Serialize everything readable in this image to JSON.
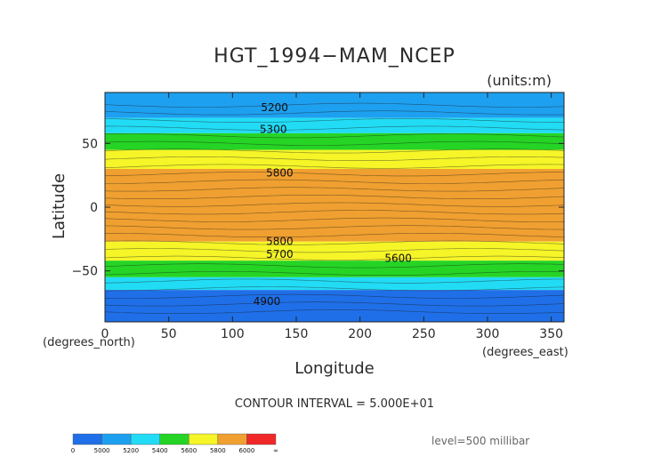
{
  "chart_data": {
    "type": "heatmap",
    "title": "HGT_1994−MAM_NCEP",
    "units": "(units:m)",
    "xlabel": "Longitude",
    "ylabel": "Latitude",
    "x_unit": "(degrees_east)",
    "y_unit": "(degrees_north)",
    "xlim": [
      0,
      360
    ],
    "ylim": [
      -90,
      90
    ],
    "x_ticks": [
      "0",
      "50",
      "100",
      "150",
      "200",
      "250",
      "300",
      "350"
    ],
    "y_ticks": [
      "50",
      "0",
      "−50"
    ],
    "contour_interval_text": "CONTOUR INTERVAL = 5.000E+01",
    "level_text": "level=500 millibar",
    "colorbar": {
      "ticks": [
        "0",
        "5000",
        "5200",
        "5400",
        "5600",
        "5800",
        "6000",
        "∞"
      ],
      "colors": [
        "#1f6fe8",
        "#1ea0f0",
        "#22dcf5",
        "#25d425",
        "#f5f528",
        "#f0a030",
        "#f02828"
      ]
    },
    "bands": [
      {
        "lat_top": 90,
        "lat_bottom": 70,
        "color": "#1ea0f0"
      },
      {
        "lat_top": 70,
        "lat_bottom": 58,
        "color": "#22dcf5"
      },
      {
        "lat_top": 58,
        "lat_bottom": 45,
        "color": "#25d425"
      },
      {
        "lat_top": 45,
        "lat_bottom": 30,
        "color": "#f5f528"
      },
      {
        "lat_top": 30,
        "lat_bottom": -27,
        "color": "#f0a030"
      },
      {
        "lat_top": -27,
        "lat_bottom": -42,
        "color": "#f5f528"
      },
      {
        "lat_top": -42,
        "lat_bottom": -55,
        "color": "#25d425"
      },
      {
        "lat_top": -55,
        "lat_bottom": -65,
        "color": "#22dcf5"
      },
      {
        "lat_top": -65,
        "lat_bottom": -90,
        "color": "#1f6fe8"
      }
    ],
    "contour_labels": [
      {
        "text": "5200",
        "lon": 133,
        "lat": 78
      },
      {
        "text": "5300",
        "lon": 132,
        "lat": 61
      },
      {
        "text": "5800",
        "lon": 137,
        "lat": 27
      },
      {
        "text": "5800",
        "lon": 137,
        "lat": -27
      },
      {
        "text": "5700",
        "lon": 137,
        "lat": -37
      },
      {
        "text": "5600",
        "lon": 230,
        "lat": -40
      },
      {
        "text": "4900",
        "lon": 127,
        "lat": -74
      }
    ]
  }
}
